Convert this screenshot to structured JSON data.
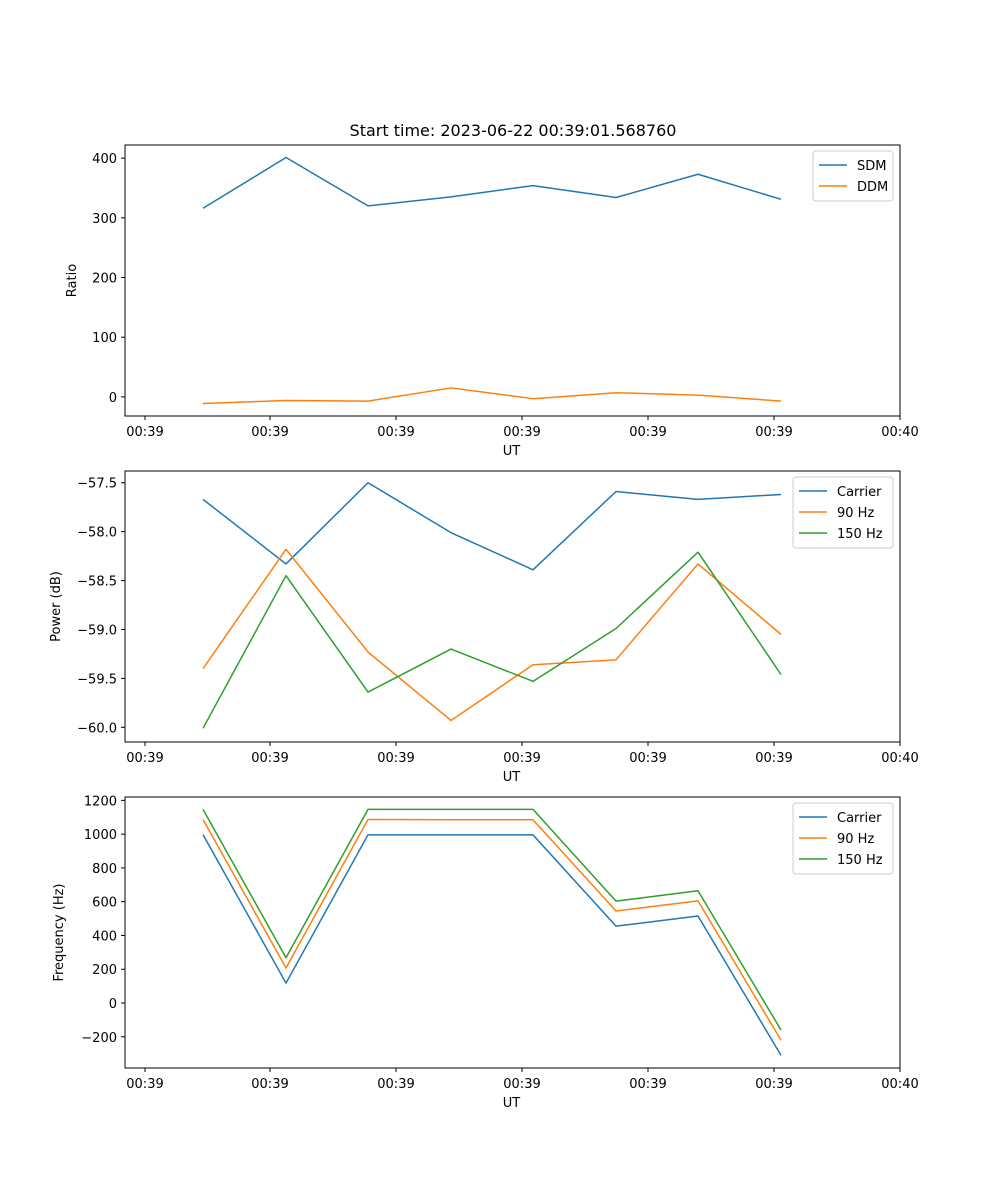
{
  "figure": {
    "title": "Start time: 2023-06-22 00:39:01.568760"
  },
  "chart_data": [
    {
      "type": "line",
      "title": "Start time: 2023-06-22 00:39:01.568760",
      "xlabel": "UT",
      "ylabel": "Ratio",
      "x_tick_labels": [
        "00:39",
        "00:39",
        "00:39",
        "00:39",
        "00:39",
        "00:39",
        "00:40"
      ],
      "y_ticks": [
        0,
        100,
        200,
        300,
        400
      ],
      "ylim": [
        -32,
        422
      ],
      "legend_position": "top-right",
      "grid": false,
      "series": [
        {
          "name": "SDM",
          "color": "#1f77b4",
          "values": [
            316,
            401,
            320,
            335,
            354,
            334,
            373,
            331
          ]
        },
        {
          "name": "DDM",
          "color": "#ff7f0e",
          "values": [
            -11,
            -6,
            -7,
            15,
            -3,
            7,
            3,
            -7
          ]
        }
      ]
    },
    {
      "type": "line",
      "xlabel": "UT",
      "ylabel": "Power (dB)",
      "x_tick_labels": [
        "00:39",
        "00:39",
        "00:39",
        "00:39",
        "00:39",
        "00:39",
        "00:40"
      ],
      "y_ticks": [
        -60.0,
        -59.5,
        -59.0,
        -58.5,
        -58.0,
        -57.5
      ],
      "y_tick_labels": [
        "−60.0",
        "−59.5",
        "−59.0",
        "−58.5",
        "−58.0",
        "−57.5"
      ],
      "ylim": [
        -60.15,
        -57.38
      ],
      "legend_position": "top-right",
      "grid": false,
      "series": [
        {
          "name": "Carrier",
          "color": "#1f77b4",
          "values": [
            -57.67,
            -58.33,
            -57.5,
            -58.01,
            -58.39,
            -57.59,
            -57.67,
            -57.62
          ]
        },
        {
          "name": "90 Hz",
          "color": "#ff7f0e",
          "values": [
            -59.4,
            -58.18,
            -59.23,
            -59.93,
            -59.36,
            -59.31,
            -58.33,
            -59.05
          ]
        },
        {
          "name": "150 Hz",
          "color": "#2ca02c",
          "values": [
            -60.01,
            -58.45,
            -59.64,
            -59.2,
            -59.53,
            -58.99,
            -58.21,
            -59.46
          ]
        }
      ]
    },
    {
      "type": "line",
      "xlabel": "UT",
      "ylabel": "Frequency (Hz)",
      "x_tick_labels": [
        "00:39",
        "00:39",
        "00:39",
        "00:39",
        "00:39",
        "00:39",
        "00:40"
      ],
      "y_ticks": [
        -200,
        0,
        200,
        400,
        600,
        800,
        1000,
        1200
      ],
      "y_tick_labels": [
        "−200",
        "0",
        "200",
        "400",
        "600",
        "800",
        "1000",
        "1200"
      ],
      "ylim": [
        -385,
        1220
      ],
      "legend_position": "top-right",
      "grid": false,
      "series": [
        {
          "name": "Carrier",
          "color": "#1f77b4",
          "values": [
            997,
            118,
            996,
            996,
            996,
            455,
            515,
            -310
          ]
        },
        {
          "name": "90 Hz",
          "color": "#ff7f0e",
          "values": [
            1087,
            208,
            1087,
            1085,
            1085,
            545,
            605,
            -220
          ]
        },
        {
          "name": "150 Hz",
          "color": "#2ca02c",
          "values": [
            1147,
            268,
            1147,
            1147,
            1147,
            603,
            665,
            -160
          ]
        }
      ]
    }
  ]
}
